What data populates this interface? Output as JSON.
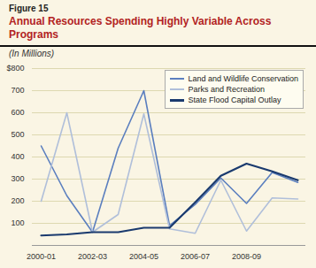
{
  "chart_data": {
    "type": "line",
    "title": "Annual Resources Spending Highly Variable Across Programs",
    "subtitle": "(In Millions)",
    "annotations": [
      "Figure 15"
    ],
    "categories": [
      "2000-01",
      null,
      "2002-03",
      null,
      "2004-05",
      null,
      "2006-07",
      null,
      "2008-09",
      null,
      null
    ],
    "series": [
      {
        "name": "Land and Wildlife Conservation",
        "color": "#5b7fbf",
        "values": [
          450,
          225,
          60,
          440,
          700,
          90,
          185,
          305,
          190,
          330,
          285
        ]
      },
      {
        "name": "Parks and Recreation",
        "color": "#b0bfda",
        "values": [
          200,
          600,
          60,
          140,
          595,
          75,
          55,
          295,
          65,
          215,
          210
        ]
      },
      {
        "name": "State Flood Capital Outlay",
        "color": "#1a3a6e",
        "values": [
          45,
          50,
          60,
          60,
          80,
          80,
          195,
          315,
          370,
          335,
          295
        ]
      }
    ],
    "ylim": [
      0,
      800
    ],
    "yticks": [
      100,
      200,
      300,
      400,
      500,
      600,
      700,
      {
        "value": 800,
        "label": "$800"
      }
    ],
    "grid": true,
    "legend": "upper right"
  }
}
